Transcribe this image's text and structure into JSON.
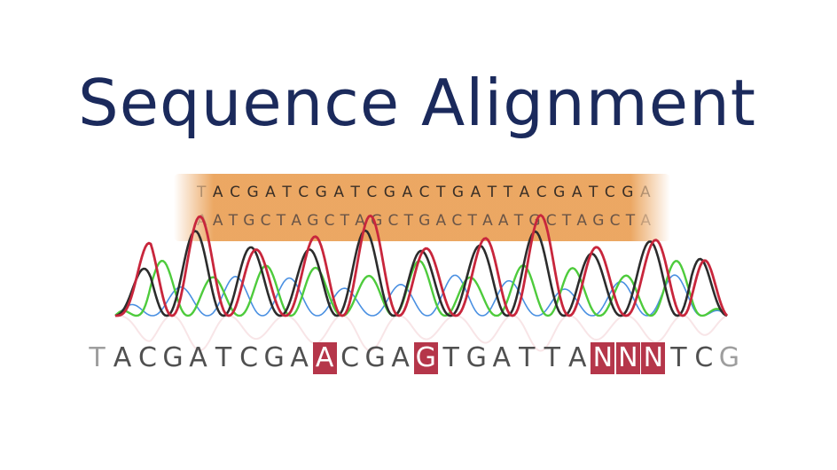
{
  "title": "Sequence Alignment",
  "reads": [
    "TACGATCGATCGACTGATTACGATCGA",
    "AATGCTAGCTAGCTGACTAATGCTAGCTA"
  ],
  "basecall": {
    "sequence": "TACGATCGAACGAGTGATTANNNTCG",
    "highlighted_positions": [
      9,
      13,
      20,
      21,
      22
    ]
  },
  "trace_colors": {
    "red": "#c8263c",
    "black": "#2c2c2c",
    "green": "#4ecb3c",
    "blue": "#4a90e2"
  },
  "colors": {
    "title": "#1b2a5c",
    "band": "#e89848",
    "highlight": "#b5364a"
  }
}
